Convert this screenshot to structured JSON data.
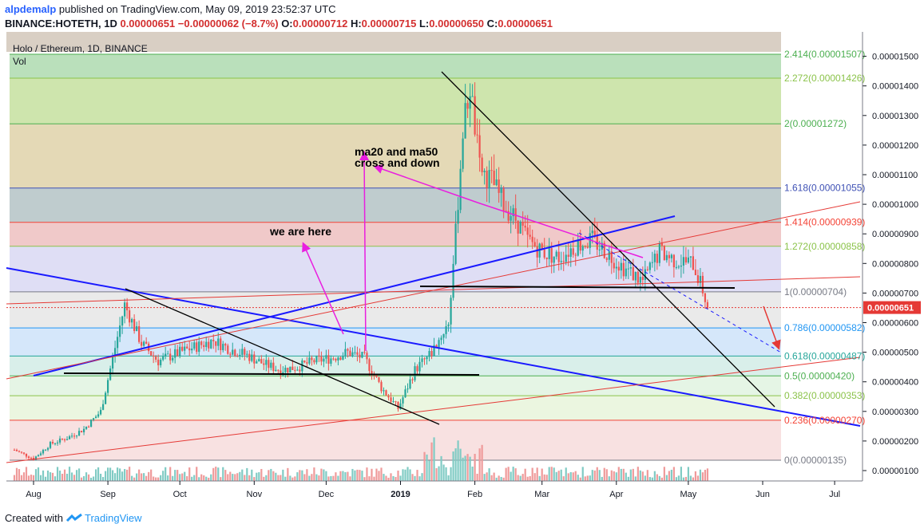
{
  "header": {
    "user": "alpdemalp",
    "published": "published on TradingView.com, May 09, 2019 23:52:37 UTC",
    "symbol": "BINANCE:HOTETH, 1D",
    "last": "0.00000651",
    "change": "−0.00000062 (−8.7%)",
    "o_label": "O:",
    "o_value": "0.00000712",
    "h_label": "H:",
    "h_value": "0.00000715",
    "l_label": "L:",
    "l_value": "0.00000650",
    "c_label": "C:",
    "c_value": "0.00000651"
  },
  "footer": {
    "created_with": "Created with",
    "brand": "TradingView"
  },
  "chart_data": {
    "type": "candlestick",
    "title": "Holo / Ethereum, 1D, BINANCE",
    "volume_label": "Vol",
    "ylim": [
      6.5e-07,
      1.55e-05
    ],
    "y_ticks": [
      {
        "label": "0.00001500",
        "value": 1.5e-05
      },
      {
        "label": "0.00001400",
        "value": 1.4e-05
      },
      {
        "label": "0.00001300",
        "value": 1.3e-05
      },
      {
        "label": "0.00001200",
        "value": 1.2e-05
      },
      {
        "label": "0.00001100",
        "value": 1.1e-05
      },
      {
        "label": "0.00001000",
        "value": 1e-05
      },
      {
        "label": "0.00000900",
        "value": 9e-06
      },
      {
        "label": "0.00000800",
        "value": 8e-06
      },
      {
        "label": "0.00000700",
        "value": 7e-06
      },
      {
        "label": "0.00000600",
        "value": 6e-06
      },
      {
        "label": "0.00000500",
        "value": 5e-06
      },
      {
        "label": "0.00000400",
        "value": 4e-06
      },
      {
        "label": "0.00000300",
        "value": 3e-06
      },
      {
        "label": "0.00000200",
        "value": 2e-06
      },
      {
        "label": "0.00000100",
        "value": 1e-06
      }
    ],
    "last_price_label": "0.00000651",
    "last_price": 6.51e-06,
    "x_ticks": [
      {
        "label": "Aug",
        "date": "2018-08-01"
      },
      {
        "label": "Sep",
        "date": "2018-09-01"
      },
      {
        "label": "Oct",
        "date": "2018-10-01"
      },
      {
        "label": "Nov",
        "date": "2018-11-01"
      },
      {
        "label": "Dec",
        "date": "2018-12-01"
      },
      {
        "label": "2019",
        "date": "2019-01-01"
      },
      {
        "label": "Feb",
        "date": "2019-02-01"
      },
      {
        "label": "Mar",
        "date": "2019-03-01"
      },
      {
        "label": "Apr",
        "date": "2019-04-01"
      },
      {
        "label": "May",
        "date": "2019-05-01"
      },
      {
        "label": "Jun",
        "date": "2019-06-01"
      },
      {
        "label": "Jul",
        "date": "2019-07-01"
      }
    ],
    "fib_levels": [
      {
        "label": "2.414(0.00001507)",
        "value": 1.507e-05,
        "color": "#4caf50"
      },
      {
        "label": "2.272(0.00001426)",
        "value": 1.426e-05,
        "color": "#8bc34a"
      },
      {
        "label": "2(0.00001272)",
        "value": 1.272e-05,
        "color": "#4caf50"
      },
      {
        "label": "1.618(0.00001055)",
        "value": 1.055e-05,
        "color": "#3f51b5"
      },
      {
        "label": "1.414(0.00000939)",
        "value": 9.39e-06,
        "color": "#f44336"
      },
      {
        "label": "1.272(0.00000858)",
        "value": 8.58e-06,
        "color": "#8bc34a"
      },
      {
        "label": "1(0.00000704)",
        "value": 7.04e-06,
        "color": "#787b86"
      },
      {
        "label": "0.786(0.00000582)",
        "value": 5.82e-06,
        "color": "#2196f3"
      },
      {
        "label": "0.618(0.00000487)",
        "value": 4.87e-06,
        "color": "#26a69a"
      },
      {
        "label": "0.5(0.00000420)",
        "value": 4.2e-06,
        "color": "#4caf50"
      },
      {
        "label": "0.382(0.00000353)",
        "value": 3.53e-06,
        "color": "#8bc34a"
      },
      {
        "label": "0.236(0.00000270)",
        "value": 2.7e-06,
        "color": "#f44336"
      },
      {
        "label": "0(0.00000135)",
        "value": 1.35e-06,
        "color": "#787b86"
      }
    ],
    "fib_bands": [
      {
        "from": 1.507e-05,
        "to": 1.426e-05,
        "color": "#81c784"
      },
      {
        "from": 1.426e-05,
        "to": 1.272e-05,
        "color": "#a5cf6a"
      },
      {
        "from": 1.272e-05,
        "to": 1.055e-05,
        "color": "#cdb97a"
      },
      {
        "from": 1.055e-05,
        "to": 9.39e-06,
        "color": "#8aa3a6"
      },
      {
        "from": 9.39e-06,
        "to": 8.58e-06,
        "color": "#e39c9c"
      },
      {
        "from": 8.58e-06,
        "to": 7.04e-06,
        "color": "#c5c3ec"
      },
      {
        "from": 7.04e-06,
        "to": 5.82e-06,
        "color": "#d8d8d8"
      },
      {
        "from": 5.82e-06,
        "to": 4.87e-06,
        "color": "#b3d4f5"
      },
      {
        "from": 4.87e-06,
        "to": 4.2e-06,
        "color": "#b9e1d9"
      },
      {
        "from": 4.2e-06,
        "to": 3.53e-06,
        "color": "#cfeccf"
      },
      {
        "from": 3.53e-06,
        "to": 2.7e-06,
        "color": "#dbefc6"
      },
      {
        "from": 2.7e-06,
        "to": 1.35e-06,
        "color": "#f2c9c9"
      }
    ],
    "annotations": [
      {
        "text": "ma20 and ma50"
      },
      {
        "text": "cross and down"
      },
      {
        "text": "we are here"
      }
    ],
    "series": [
      {
        "name": "",
        "type": "close",
        "dates": [
          "2018-07-24",
          "2018-08-01",
          "2018-08-08",
          "2018-08-15",
          "2018-08-22",
          "2018-08-29",
          "2018-09-03",
          "2018-09-08",
          "2018-09-15",
          "2018-09-22",
          "2018-10-01",
          "2018-10-08",
          "2018-10-15",
          "2018-10-22",
          "2018-10-29",
          "2018-11-05",
          "2018-11-12",
          "2018-11-19",
          "2018-11-26",
          "2018-12-03",
          "2018-12-10",
          "2018-12-17",
          "2018-12-24",
          "2018-12-31",
          "2019-01-07",
          "2019-01-14",
          "2019-01-21",
          "2019-01-24",
          "2019-01-27",
          "2019-01-30",
          "2019-02-03",
          "2019-02-08",
          "2019-02-13",
          "2019-02-18",
          "2019-02-23",
          "2019-03-01",
          "2019-03-08",
          "2019-03-15",
          "2019-03-22",
          "2019-03-29",
          "2019-04-05",
          "2019-04-12",
          "2019-04-19",
          "2019-04-26",
          "2019-05-03",
          "2019-05-07",
          "2019-05-09"
        ],
        "values": [
          1.7e-06,
          1.4e-06,
          1.9e-06,
          2.1e-06,
          2.4e-06,
          3e-06,
          4.8e-06,
          6.6e-06,
          5.3e-06,
          4.7e-06,
          5e-06,
          5.2e-06,
          5.4e-06,
          5.1e-06,
          4.9e-06,
          4.6e-06,
          4.4e-06,
          4.5e-06,
          4.7e-06,
          4.8e-06,
          5e-06,
          4.8e-06,
          3.8e-06,
          3.1e-06,
          4.4e-06,
          5e-06,
          6e-06,
          9e-06,
          1.25e-05,
          1.4e-05,
          1.12e-05,
          1.08e-05,
          1e-05,
          9.5e-06,
          8.8e-06,
          8.4e-06,
          8.2e-06,
          8.6e-06,
          8.8e-06,
          8.3e-06,
          7.8e-06,
          7.4e-06,
          8.4e-06,
          8.1e-06,
          8e-06,
          7.1e-06,
          6.51e-06
        ]
      }
    ]
  }
}
